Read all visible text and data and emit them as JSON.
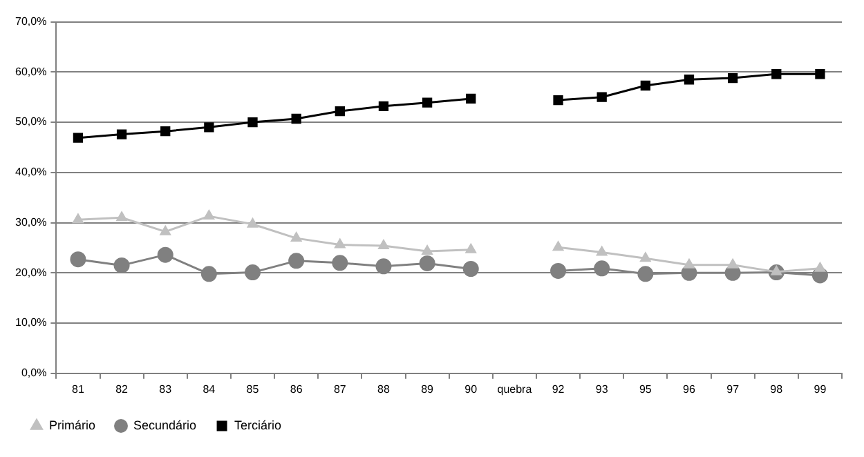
{
  "chart_data": {
    "type": "line",
    "categories": [
      "81",
      "82",
      "83",
      "84",
      "85",
      "86",
      "87",
      "88",
      "89",
      "90",
      "quebra",
      "92",
      "93",
      "95",
      "96",
      "97",
      "98",
      "99"
    ],
    "series": [
      {
        "name": "Primário",
        "color": "#c0c0c0",
        "marker": "triangle",
        "values": [
          30.6,
          31.0,
          28.2,
          31.3,
          29.7,
          26.9,
          25.6,
          25.4,
          24.3,
          24.6,
          null,
          25.1,
          24.1,
          22.9,
          21.6,
          21.6,
          20.2,
          20.9
        ]
      },
      {
        "name": "Secundário",
        "color": "#808080",
        "marker": "circle",
        "values": [
          22.7,
          21.5,
          23.6,
          19.8,
          20.1,
          22.4,
          22.0,
          21.3,
          21.9,
          20.8,
          null,
          20.4,
          20.9,
          19.8,
          20.0,
          20.0,
          20.1,
          19.5
        ]
      },
      {
        "name": "Terciário",
        "color": "#000000",
        "marker": "square",
        "values": [
          46.9,
          47.6,
          48.2,
          49.0,
          50.0,
          50.7,
          52.2,
          53.2,
          53.9,
          54.7,
          null,
          54.4,
          55.0,
          57.3,
          58.5,
          58.8,
          59.6,
          59.6
        ]
      }
    ],
    "ylim": [
      0,
      70
    ],
    "yticks": [
      {
        "value": 0,
        "label": "0,0%"
      },
      {
        "value": 10,
        "label": "10,0%"
      },
      {
        "value": 20,
        "label": "20,0%"
      },
      {
        "value": 30,
        "label": "30,0%"
      },
      {
        "value": 40,
        "label": "40,0%"
      },
      {
        "value": 50,
        "label": "50,0%"
      },
      {
        "value": 60,
        "label": "60,0%"
      },
      {
        "value": 70,
        "label": "70,0%"
      }
    ],
    "grid": "y",
    "legend": "bottom",
    "line_style": "solid"
  }
}
